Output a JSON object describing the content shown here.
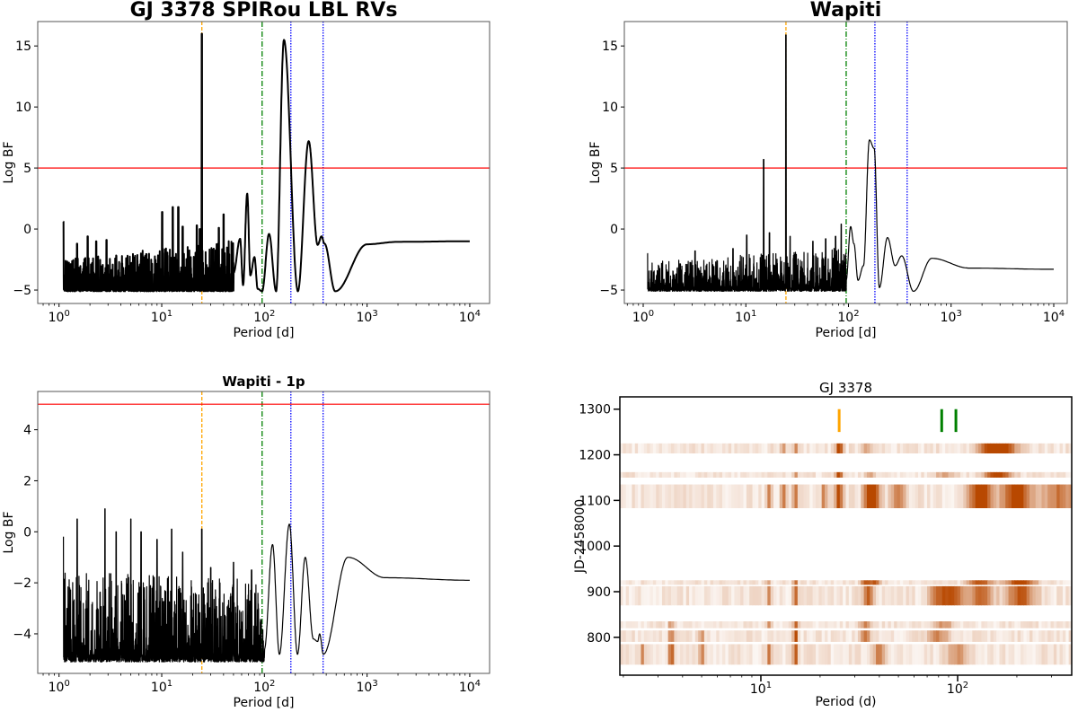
{
  "chart_data": [
    {
      "type": "line",
      "title": "GJ 3378 SPIRou LBL RVs",
      "xlabel": "Period [d]",
      "ylabel": "Log BF",
      "xscale": "log",
      "xlim": [
        0.62,
        15600
      ],
      "ylim": [
        -6.1,
        17.0
      ],
      "xticks": [
        {
          "v": 1,
          "e": "0"
        },
        {
          "v": 10,
          "e": "1"
        },
        {
          "v": 100,
          "e": "2"
        },
        {
          "v": 1000,
          "e": "3"
        },
        {
          "v": 10000,
          "e": "4"
        }
      ],
      "yticks": [
        -5,
        0,
        5,
        10,
        15
      ],
      "threshold": {
        "value": 5,
        "color": "#ff0000"
      },
      "vlines": [
        {
          "period": 24.6,
          "color": "#ffa500",
          "style": "dashed"
        },
        {
          "period": 95,
          "color": "#008000",
          "style": "dashdot"
        },
        {
          "period": 181,
          "color": "#0000ff",
          "style": "dotted"
        },
        {
          "period": 373,
          "color": "#0000ff",
          "style": "dotted"
        }
      ],
      "noise": {
        "from": 1.1,
        "to": 50,
        "floor": -5.1,
        "amp_low": 2.6,
        "amp_high": 4.2,
        "seed": 7
      },
      "spikes": [
        [
          1.1,
          0.6
        ],
        [
          1.5,
          -1.2
        ],
        [
          1.9,
          -0.6
        ],
        [
          2.3,
          -1.0
        ],
        [
          2.9,
          -0.9
        ],
        [
          10.1,
          1.4
        ],
        [
          12.8,
          1.8
        ],
        [
          14.5,
          1.8
        ],
        [
          16,
          0.2
        ],
        [
          22,
          0.3
        ],
        [
          23.5,
          0.0
        ],
        [
          24.6,
          16.0
        ],
        [
          40,
          1.2
        ],
        [
          36,
          0.1
        ]
      ],
      "smooth_points": [
        [
          50,
          -3.6
        ],
        [
          58,
          -0.8
        ],
        [
          62,
          -4.6
        ],
        [
          68,
          2.9
        ],
        [
          73,
          -3.8
        ],
        [
          80,
          -2.3
        ],
        [
          86,
          -4.9
        ],
        [
          95,
          -5.1
        ],
        [
          111,
          -0.4
        ],
        [
          130,
          -5.1
        ],
        [
          155,
          15.5
        ],
        [
          212,
          -5.1
        ],
        [
          270,
          7.2
        ],
        [
          330,
          -1.3
        ],
        [
          360,
          -0.6
        ],
        [
          385,
          -1.2
        ],
        [
          490,
          -5.1
        ],
        [
          1000,
          -1.25
        ],
        [
          2000,
          -1.05
        ],
        [
          10000,
          -1.0
        ]
      ],
      "line_width": 2
    },
    {
      "type": "line",
      "title": "Wapiti",
      "xlabel": "Period [d]",
      "ylabel": "Log BF",
      "xscale": "log",
      "xlim": [
        0.655,
        13530
      ],
      "ylim": [
        -6.1,
        17.0
      ],
      "xticks": [
        {
          "v": 1,
          "e": "0"
        },
        {
          "v": 10,
          "e": "1"
        },
        {
          "v": 100,
          "e": "2"
        },
        {
          "v": 1000,
          "e": "3"
        },
        {
          "v": 10000,
          "e": "4"
        }
      ],
      "yticks": [
        -5,
        0,
        5,
        10,
        15
      ],
      "threshold": {
        "value": 5,
        "color": "#ff0000"
      },
      "vlines": [
        {
          "period": 24.6,
          "color": "#ffa500",
          "style": "dashed"
        },
        {
          "period": 95,
          "color": "#008000",
          "style": "dashdot"
        },
        {
          "period": 181,
          "color": "#0000ff",
          "style": "dotted"
        },
        {
          "period": 373,
          "color": "#0000ff",
          "style": "dotted"
        }
      ],
      "noise": {
        "from": 1.1,
        "to": 95,
        "floor": -5.1,
        "amp_low": 2.4,
        "amp_high": 3.6,
        "seed": 11
      },
      "spikes": [
        [
          1.1,
          -2.0
        ],
        [
          3.2,
          -1.8
        ],
        [
          7.5,
          -1.6
        ],
        [
          10.2,
          -0.5
        ],
        [
          14.9,
          5.7
        ],
        [
          17,
          -0.3
        ],
        [
          24.6,
          15.9
        ],
        [
          27,
          -0.6
        ],
        [
          45,
          -1.0
        ],
        [
          60,
          -0.8
        ],
        [
          75,
          -0.6
        ],
        [
          85,
          0.4
        ]
      ],
      "smooth_points": [
        [
          95,
          -4.2
        ],
        [
          105,
          0.2
        ],
        [
          113,
          -1.2
        ],
        [
          124,
          -4.2
        ],
        [
          140,
          -3.0
        ],
        [
          160,
          7.3
        ],
        [
          178,
          6.6
        ],
        [
          200,
          -4.8
        ],
        [
          240,
          -0.7
        ],
        [
          285,
          -3.0
        ],
        [
          330,
          -2.2
        ],
        [
          430,
          -5.1
        ],
        [
          650,
          -2.4
        ],
        [
          1500,
          -3.2
        ],
        [
          10000,
          -3.3
        ]
      ],
      "line_width": 1.2
    },
    {
      "type": "line",
      "title": "Wapiti - 1p",
      "xlabel": "Period [d]",
      "ylabel": "Log BF",
      "xscale": "log",
      "xlim": [
        0.62,
        15600
      ],
      "ylim": [
        -5.55,
        5.5
      ],
      "xticks": [
        {
          "v": 1,
          "e": "0"
        },
        {
          "v": 10,
          "e": "1"
        },
        {
          "v": 100,
          "e": "2"
        },
        {
          "v": 1000,
          "e": "3"
        },
        {
          "v": 10000,
          "e": "4"
        }
      ],
      "yticks": [
        -4,
        -2,
        0,
        2,
        4
      ],
      "threshold": {
        "value": 5,
        "color": "#ff0000"
      },
      "vlines": [
        {
          "period": 24.6,
          "color": "#ffa500",
          "style": "dashed"
        },
        {
          "period": 95,
          "color": "#008000",
          "style": "dashdot"
        },
        {
          "period": 181,
          "color": "#0000ff",
          "style": "dotted"
        },
        {
          "period": 373,
          "color": "#0000ff",
          "style": "dotted"
        }
      ],
      "noise": {
        "from": 1.1,
        "to": 100,
        "floor": -5.1,
        "amp_low": 3.6,
        "amp_high": 3.2,
        "seed": 23
      },
      "spikes": [
        [
          1.1,
          -0.2
        ],
        [
          1.5,
          0.5
        ],
        [
          2.8,
          0.9
        ],
        [
          3.6,
          0.0
        ],
        [
          5.0,
          0.5
        ],
        [
          6.3,
          0.0
        ],
        [
          9,
          -0.3
        ],
        [
          12.5,
          0.1
        ],
        [
          16,
          -0.8
        ],
        [
          24.6,
          0.1
        ],
        [
          30,
          -1.4
        ],
        [
          50,
          -1.2
        ],
        [
          75,
          -1.5
        ]
      ],
      "smooth_points": [
        [
          100,
          -4.6
        ],
        [
          120,
          -0.5
        ],
        [
          140,
          -4.8
        ],
        [
          175,
          0.3
        ],
        [
          210,
          -4.8
        ],
        [
          250,
          -1.0
        ],
        [
          300,
          -4.2
        ],
        [
          330,
          -4.3
        ],
        [
          345,
          -4.0
        ],
        [
          375,
          -4.8
        ],
        [
          650,
          -1.0
        ],
        [
          1500,
          -1.8
        ],
        [
          10000,
          -1.9
        ]
      ],
      "line_width": 1.2
    },
    {
      "type": "heatmap",
      "title": "GJ 3378",
      "xlabel": "Period (d)",
      "ylabel": "JD-2458000",
      "xscale": "log",
      "xlim": [
        1.92,
        380
      ],
      "ylim": [
        717,
        1327
      ],
      "xticks": [
        {
          "v": 10,
          "e": "1"
        },
        {
          "v": 100,
          "e": "2"
        }
      ],
      "yticks": [
        800,
        900,
        1000,
        1100,
        1200,
        1300
      ],
      "colormap": {
        "low": "#ffffff",
        "high": "#b84800"
      },
      "markers": [
        {
          "period": 25,
          "color": "#ffa500"
        },
        {
          "period": 83,
          "color": "#008000"
        },
        {
          "period": 98,
          "color": "#008000"
        }
      ],
      "bands": [
        {
          "jd": [
            1203,
            1225
          ],
          "hotspots": [
            [
              25,
              1.0
            ],
            [
              15,
              0.5
            ],
            [
              13,
              0.4
            ],
            [
              35,
              0.35
            ],
            [
              150,
              0.9
            ],
            [
              170,
              0.85
            ]
          ]
        },
        {
          "jd": [
            1150,
            1162
          ],
          "hotspots": [
            [
              25,
              1.0
            ],
            [
              15,
              0.4
            ],
            [
              36,
              0.35
            ],
            [
              85,
              0.35
            ],
            [
              160,
              0.95
            ]
          ]
        },
        {
          "jd": [
            1083,
            1135
          ],
          "hotspots": [
            [
              25,
              0.9
            ],
            [
              11,
              0.5
            ],
            [
              13,
              0.6
            ],
            [
              15,
              0.65
            ],
            [
              21,
              0.55
            ],
            [
              35,
              0.75
            ],
            [
              38,
              0.8
            ],
            [
              50,
              0.5
            ],
            [
              130,
              1.0
            ],
            [
              200,
              1.0
            ],
            [
              330,
              0.6
            ]
          ]
        },
        {
          "jd": [
            915,
            925
          ],
          "hotspots": [
            [
              15,
              0.65
            ],
            [
              11,
              0.45
            ],
            [
              34,
              0.8
            ],
            [
              38,
              0.75
            ],
            [
              130,
              0.85
            ],
            [
              210,
              0.95
            ]
          ]
        },
        {
          "jd": [
            870,
            912
          ],
          "hotspots": [
            [
              15,
              0.7
            ],
            [
              11,
              0.5
            ],
            [
              35,
              0.7
            ],
            [
              80,
              0.6
            ],
            [
              95,
              0.7
            ],
            [
              130,
              0.7
            ],
            [
              210,
              0.75
            ]
          ]
        },
        {
          "jd": [
            820,
            835
          ],
          "hotspots": [
            [
              3.5,
              0.5
            ],
            [
              11,
              0.45
            ],
            [
              15,
              0.75
            ],
            [
              34,
              0.5
            ],
            [
              85,
              0.45
            ]
          ]
        },
        {
          "jd": [
            790,
            815
          ],
          "hotspots": [
            [
              3.5,
              0.75
            ],
            [
              5,
              0.5
            ],
            [
              15,
              0.85
            ],
            [
              34,
              0.65
            ],
            [
              80,
              0.5
            ]
          ]
        },
        {
          "jd": [
            740,
            785
          ],
          "hotspots": [
            [
              2.5,
              0.6
            ],
            [
              3.5,
              0.9
            ],
            [
              5,
              0.6
            ],
            [
              11,
              0.55
            ],
            [
              15,
              0.85
            ],
            [
              40,
              0.6
            ],
            [
              100,
              0.4
            ]
          ]
        }
      ]
    }
  ]
}
